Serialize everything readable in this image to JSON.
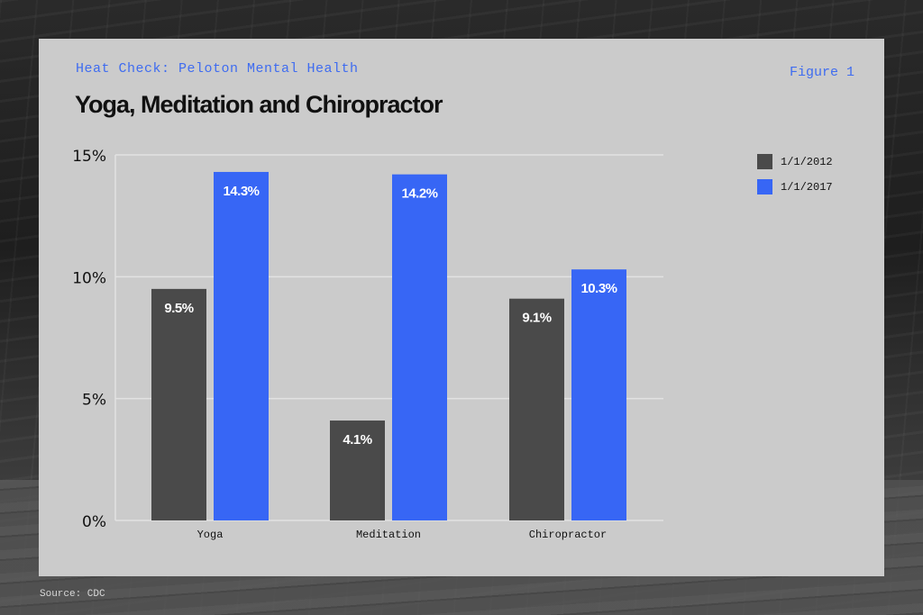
{
  "header": {
    "kicker": "Heat Check: Peloton Mental Health",
    "figure_label": "Figure 1",
    "title": "Yoga, Meditation and Chiropractor"
  },
  "footer": {
    "source": "Source: CDC"
  },
  "colors": {
    "series_2012": "#4a4a4a",
    "series_2017": "#3766f5",
    "card": "#cbcbcb",
    "accent_text": "#3f6cf0"
  },
  "chart_data": {
    "type": "bar",
    "title": "Yoga, Meditation and Chiropractor",
    "xlabel": "",
    "ylabel": "",
    "categories": [
      "Yoga",
      "Meditation",
      "Chiropractor"
    ],
    "series": [
      {
        "name": "1/1/2012",
        "values": [
          9.5,
          4.1,
          9.1
        ],
        "labels": [
          "9.5%",
          "4.1%",
          "9.1%"
        ]
      },
      {
        "name": "1/1/2017",
        "values": [
          14.3,
          14.2,
          10.3
        ],
        "labels": [
          "14.3%",
          "14.2%",
          "10.3%"
        ]
      }
    ],
    "ylim": [
      0,
      15
    ],
    "yticks": [
      0,
      5,
      10,
      15
    ],
    "ytick_labels": [
      "0%",
      "5%",
      "10%",
      "15%"
    ],
    "grid": true,
    "legend": "top-right"
  }
}
